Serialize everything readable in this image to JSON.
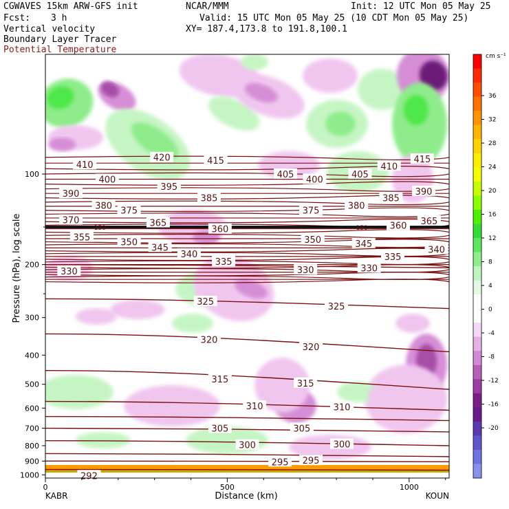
{
  "header": {
    "model": "CGWAVES 15km ARW-GFS init",
    "center": "NCAR/MMM",
    "init": "Init: 12 UTC Mon 05 May 25",
    "fcst_label": "Fcst:",
    "fcst_value": "3 h",
    "valid": "Valid: 15 UTC Mon 05 May 25 (10 CDT Mon 05 May 25)",
    "field1": "Vertical velocity",
    "field2": "Boundary Layer Tracer",
    "field3": "Potential Temperature",
    "xy": "XY= 187.4,173.8 to 191.8,100.1"
  },
  "colors": {
    "theta_line": "#7a0f0f",
    "theta_label": "#5a1010",
    "up_light": "#c6f5c4",
    "up_mid": "#8fec8b",
    "up_strong": "#4de84a",
    "down_light": "#f0c6ef",
    "down_mid": "#d58ed6",
    "down_strong": "#a64ea7",
    "down_xstrong": "#6b1a78"
  },
  "chart_data": {
    "type": "contour-cross-section",
    "ylabel": "Pressure (hPa), log scale",
    "xlabel": "Distance (km)",
    "x_ticks": [
      "0",
      "500",
      "1000"
    ],
    "x_endpoints": [
      "KABR",
      "KOUN"
    ],
    "xlim": [
      0,
      1110
    ],
    "y_ticks": [
      "100",
      "200",
      "300",
      "400",
      "500",
      "600",
      "700",
      "800",
      "900",
      "1000"
    ],
    "ylim_hPa": [
      1025,
      40
    ],
    "y_scale": "log",
    "colorbar": {
      "unit": "cm s⁻¹",
      "tick_labels": [
        "36",
        "32",
        "28",
        "24",
        "20",
        "16",
        "12",
        "8",
        "4",
        "0",
        "-4",
        "-8",
        "-12",
        "-16",
        "-20"
      ],
      "colors": [
        "#ff0000",
        "#ff2a00",
        "#ff4e00",
        "#ff7200",
        "#ff9400",
        "#ffb400",
        "#ffd200",
        "#ffee00",
        "#f5ff00",
        "#c8ff00",
        "#8cff00",
        "#4cf000",
        "#34dd34",
        "#5ce85c",
        "#8eee8e",
        "#bff5bf",
        "#e3fbe3",
        "#ffffff",
        "#ffffff",
        "#f5d8f5",
        "#e6b1e6",
        "#d389d6",
        "#b661b9",
        "#9b3da1",
        "#7c1f84",
        "#6a1a8a",
        "#5b3ab0",
        "#5e55cf",
        "#6f73e2",
        "#8792ee"
      ]
    },
    "theta_labels": [
      {
        "text": "420",
        "x": 320,
        "p": 88
      },
      {
        "text": "415",
        "x": 468,
        "p": 90
      },
      {
        "text": "415",
        "x": 1036,
        "p": 89
      },
      {
        "text": "410",
        "x": 108,
        "p": 93
      },
      {
        "text": "410",
        "x": 945,
        "p": 94
      },
      {
        "text": "405",
        "x": 660,
        "p": 100
      },
      {
        "text": "405",
        "x": 865,
        "p": 100
      },
      {
        "text": "400",
        "x": 170,
        "p": 104
      },
      {
        "text": "400",
        "x": 740,
        "p": 104
      },
      {
        "text": "395",
        "x": 340,
        "p": 110
      },
      {
        "text": "390",
        "x": 70,
        "p": 116
      },
      {
        "text": "390",
        "x": 1040,
        "p": 114
      },
      {
        "text": "385",
        "x": 450,
        "p": 120
      },
      {
        "text": "385",
        "x": 950,
        "p": 120
      },
      {
        "text": "380",
        "x": 160,
        "p": 127
      },
      {
        "text": "380",
        "x": 855,
        "p": 127
      },
      {
        "text": "375",
        "x": 230,
        "p": 132
      },
      {
        "text": "375",
        "x": 730,
        "p": 132
      },
      {
        "text": "370",
        "x": 70,
        "p": 142
      },
      {
        "text": "365",
        "x": 310,
        "p": 145
      },
      {
        "text": "365",
        "x": 1055,
        "p": 143
      },
      {
        "text": "360",
        "x": 480,
        "p": 152
      },
      {
        "text": "360",
        "x": 970,
        "p": 148
      },
      {
        "text": "355",
        "x": 100,
        "p": 162
      },
      {
        "text": "350",
        "x": 230,
        "p": 168
      },
      {
        "text": "350",
        "x": 735,
        "p": 165
      },
      {
        "text": "345",
        "x": 315,
        "p": 175
      },
      {
        "text": "345",
        "x": 875,
        "p": 170
      },
      {
        "text": "340",
        "x": 395,
        "p": 184
      },
      {
        "text": "340",
        "x": 1075,
        "p": 178
      },
      {
        "text": "335",
        "x": 490,
        "p": 195
      },
      {
        "text": "335",
        "x": 955,
        "p": 188
      },
      {
        "text": "330",
        "x": 65,
        "p": 210
      },
      {
        "text": "330",
        "x": 715,
        "p": 208
      },
      {
        "text": "330",
        "x": 890,
        "p": 205
      },
      {
        "text": "325",
        "x": 440,
        "p": 265
      },
      {
        "text": "325",
        "x": 800,
        "p": 275
      },
      {
        "text": "320",
        "x": 450,
        "p": 355
      },
      {
        "text": "320",
        "x": 730,
        "p": 375
      },
      {
        "text": "315",
        "x": 480,
        "p": 480
      },
      {
        "text": "315",
        "x": 715,
        "p": 495
      },
      {
        "text": "310",
        "x": 575,
        "p": 590
      },
      {
        "text": "310",
        "x": 815,
        "p": 595
      },
      {
        "text": "305",
        "x": 480,
        "p": 700
      },
      {
        "text": "305",
        "x": 705,
        "p": 700
      },
      {
        "text": "300",
        "x": 555,
        "p": 795
      },
      {
        "text": "300",
        "x": 815,
        "p": 790
      },
      {
        "text": "295",
        "x": 645,
        "p": 905
      },
      {
        "text": "295",
        "x": 730,
        "p": 895
      },
      {
        "text": "292",
        "x": 120,
        "p": 1005
      }
    ],
    "tropopause_label": "150",
    "grid": false
  }
}
